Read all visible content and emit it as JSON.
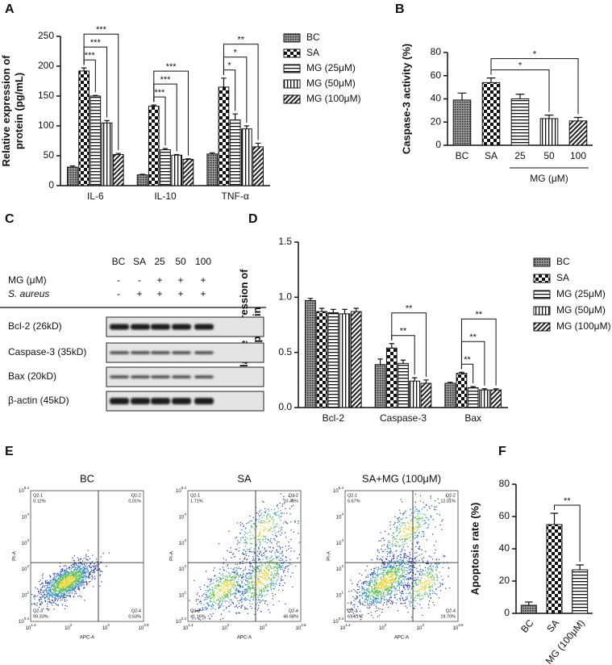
{
  "panel_labels": [
    "A",
    "B",
    "C",
    "D",
    "E",
    "F"
  ],
  "chart_data": [
    {
      "type": "bar",
      "ylabel": "Relative expression of protein (pg/mL)",
      "categories": [
        "IL-6",
        "IL-10",
        "TNF-α"
      ],
      "series": [
        {
          "name": "BC",
          "pattern": "crosshatch",
          "values": [
            31,
            18,
            53
          ],
          "errors": [
            2,
            1,
            2
          ]
        },
        {
          "name": "SA",
          "pattern": "checker",
          "values": [
            192,
            133,
            165
          ],
          "errors": [
            5,
            2,
            15
          ]
        },
        {
          "name": "MG (25μM)",
          "pattern": "hlines",
          "values": [
            150,
            60,
            110
          ],
          "errors": [
            1,
            2,
            10
          ]
        },
        {
          "name": "MG (50μM)",
          "pattern": "vlines",
          "values": [
            105,
            51,
            95
          ],
          "errors": [
            4,
            1,
            5
          ]
        },
        {
          "name": "MG (100μM)",
          "pattern": "diag",
          "values": [
            52,
            44,
            65
          ],
          "errors": [
            2,
            1,
            6
          ]
        }
      ],
      "ylim": [
        0,
        250
      ],
      "yticks": [
        0,
        50,
        100,
        150,
        200,
        250
      ],
      "legend": "right",
      "annotations": [
        "***",
        "***",
        "***",
        "***",
        "***",
        "***",
        "*",
        "*",
        "**"
      ]
    },
    {
      "type": "bar",
      "ylabel": "Caspase-3 activity (%)",
      "xlabel": "MG (μM)",
      "categories": [
        "BC",
        "SA",
        "25",
        "50",
        "100"
      ],
      "values": [
        39,
        54,
        40,
        23,
        21
      ],
      "errors": [
        6,
        4,
        4,
        3,
        3
      ],
      "patterns": [
        "crosshatch",
        "checker",
        "hlines",
        "vlines",
        "diag"
      ],
      "ylim": [
        0,
        80
      ],
      "yticks": [
        0,
        20,
        40,
        60,
        80
      ],
      "annotations": [
        "*",
        "*"
      ]
    },
    {
      "type": "bar",
      "ylabel": "Relative expression of protein",
      "categories": [
        "Bcl-2",
        "Caspase-3",
        "Bax"
      ],
      "series": [
        {
          "name": "BC",
          "pattern": "crosshatch",
          "values": [
            0.97,
            0.39,
            0.22
          ],
          "errors": [
            0.02,
            0.05,
            0.01
          ]
        },
        {
          "name": "SA",
          "pattern": "checker",
          "values": [
            0.87,
            0.54,
            0.31
          ],
          "errors": [
            0.03,
            0.04,
            0.01
          ]
        },
        {
          "name": "MG (25μM)",
          "pattern": "hlines",
          "values": [
            0.86,
            0.4,
            0.18
          ],
          "errors": [
            0.03,
            0.03,
            0.01
          ]
        },
        {
          "name": "MG (50μM)",
          "pattern": "vlines",
          "values": [
            0.85,
            0.24,
            0.16
          ],
          "errors": [
            0.04,
            0.03,
            0.01
          ]
        },
        {
          "name": "MG (100μM)",
          "pattern": "diag",
          "values": [
            0.87,
            0.22,
            0.16
          ],
          "errors": [
            0.03,
            0.03,
            0.01
          ]
        }
      ],
      "ylim": [
        0,
        1.5
      ],
      "yticks": [
        {
          "value": 0,
          "label": "0.0"
        },
        0.5,
        {
          "value": 1,
          "label": "1.0"
        },
        1.5
      ],
      "legend": "right",
      "annotations": [
        "**",
        "**",
        "**",
        "**",
        "**"
      ]
    },
    {
      "type": "bar",
      "ylabel": "Apoptosis rate (%)",
      "categories": [
        "BC",
        "SA",
        "MG (100μM)"
      ],
      "values": [
        5,
        55,
        27
      ],
      "errors": [
        2,
        7,
        3
      ],
      "patterns": [
        "crosshatch",
        "checker",
        "hlines"
      ],
      "ylim": [
        0,
        80
      ],
      "yticks": [
        0,
        20,
        40,
        60,
        80
      ],
      "annotations": [
        "**"
      ]
    }
  ],
  "blot": {
    "columns": [
      "BC",
      "SA",
      "25",
      "50",
      "100"
    ],
    "treatments": [
      {
        "label": "MG (μM)",
        "signs": [
          "-",
          "-",
          "+",
          "+",
          "+"
        ]
      },
      {
        "label": "S. aureus",
        "signs": [
          "-",
          "+",
          "+",
          "+",
          "+"
        ]
      }
    ],
    "bands": [
      "Bcl-2 (26kD)",
      "Caspase-3 (35kD)",
      "Bax (20kD)",
      "β-actin (45kD)"
    ]
  },
  "flow": {
    "x_label": "APC-A",
    "y_label": "PI-A",
    "x_ticks": [
      {
        "base": "10",
        "exp": "1.4"
      },
      {
        "base": "10",
        "exp": "2"
      },
      {
        "base": "10",
        "exp": "3"
      },
      {
        "base": "10",
        "exp": "3.8"
      }
    ],
    "y_ticks": [
      {
        "base": "10",
        "exp": "0.3"
      },
      {
        "base": "10",
        "exp": "1"
      },
      {
        "base": "10",
        "exp": "2"
      },
      {
        "base": "10",
        "exp": "3"
      },
      {
        "base": "10",
        "exp": "4"
      },
      {
        "base": "10",
        "exp": "5.4"
      }
    ],
    "plots": [
      {
        "title": "BC",
        "quadrants": [
          {
            "name": "Q2-1",
            "pct": "0.12%"
          },
          {
            "name": "Q2-2",
            "pct": "0.01%"
          },
          {
            "name": "Q2-3",
            "pct": "99.33%"
          },
          {
            "name": "Q2-4",
            "pct": "0.53%"
          }
        ]
      },
      {
        "title": "SA",
        "quadrants": [
          {
            "name": "Q2-1",
            "pct": "1.71%"
          },
          {
            "name": "Q2-2",
            "pct": "10.45%"
          },
          {
            "name": "Q2-3",
            "pct": "41.16%"
          },
          {
            "name": "Q2-4",
            "pct": "46.68%"
          }
        ]
      },
      {
        "title": "SA+MG (100μM)",
        "quadrants": [
          {
            "name": "Q2-1",
            "pct": "6.67%"
          },
          {
            "name": "Q2-2",
            "pct": "12.01%"
          },
          {
            "name": "Q2-3",
            "pct": "61.61%"
          },
          {
            "name": "Q2-4",
            "pct": "19.70%"
          }
        ]
      }
    ]
  }
}
